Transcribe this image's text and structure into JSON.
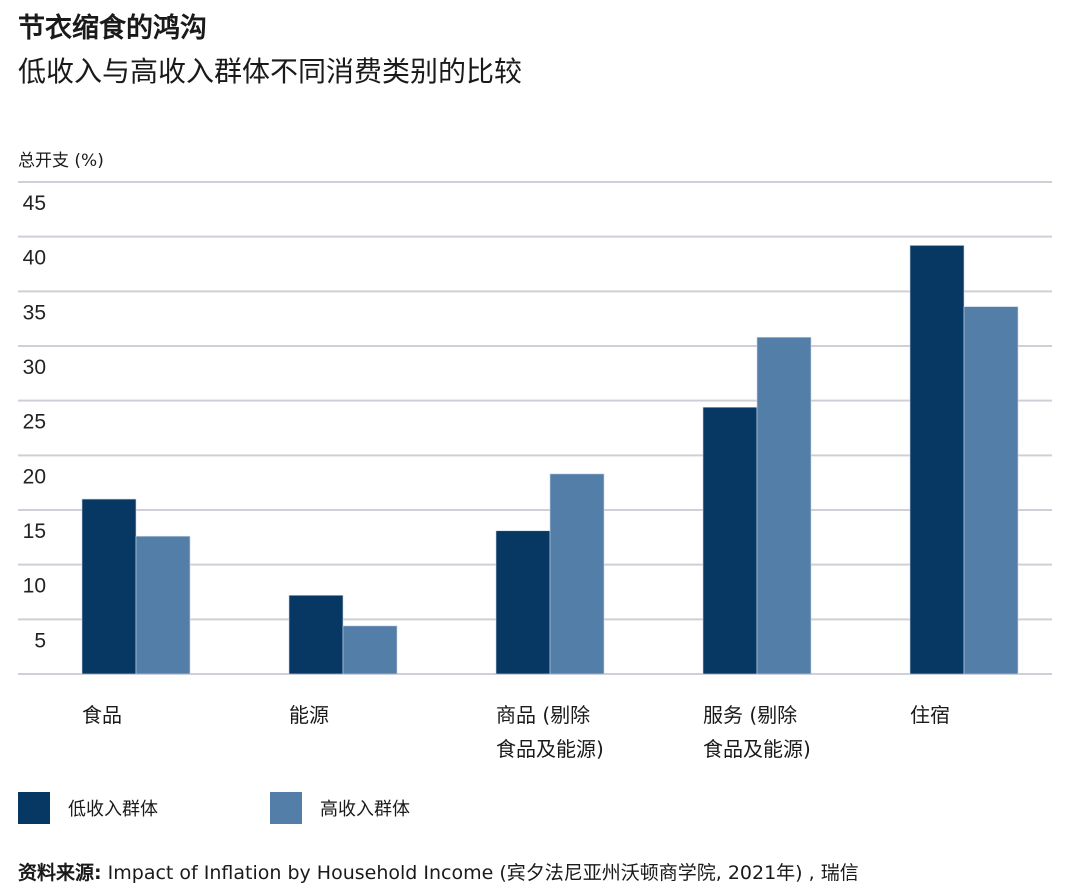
{
  "title": "节衣缩食的鸿沟",
  "subtitle": "低收入与高收入群体不同消费类别的比较",
  "source_label": "资料来源:",
  "source_text": " Impact of Inflation by Household Income (宾夕法尼亚州沃顿商学院, 2021年) , 瑞信",
  "chart_data": {
    "type": "bar",
    "title": "节衣缩食的鸿沟",
    "ylabel": "总开支 (%)",
    "xlabel": "",
    "ylim": [
      0,
      45
    ],
    "yticks": [
      5,
      10,
      15,
      20,
      25,
      30,
      35,
      40,
      45
    ],
    "grid": true,
    "legend_position": "bottom-left",
    "categories": [
      "食品",
      "能源",
      "商品 (剔除\n食品及能源)",
      "服务 (剔除\n食品及能源)",
      "住宿"
    ],
    "series": [
      {
        "name": "低收入群体",
        "color": "#073763",
        "values": [
          16.0,
          7.2,
          13.1,
          24.4,
          39.2
        ]
      },
      {
        "name": "高收入群体",
        "color": "#537ea8",
        "values": [
          12.6,
          4.4,
          18.3,
          30.8,
          33.6
        ]
      }
    ]
  }
}
